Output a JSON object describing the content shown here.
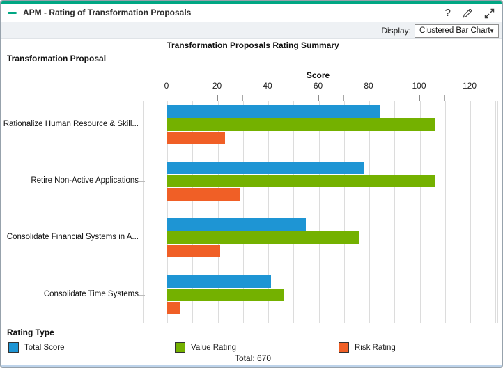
{
  "window": {
    "title": "APM - Rating of Transformation Proposals",
    "icons": {
      "minimize": "dash",
      "help": "?",
      "edit": "pencil",
      "expand": "diagonal-arrows"
    }
  },
  "toolbar": {
    "display_label": "Display:",
    "display_value": "Clustered Bar Chart",
    "caret": "▼"
  },
  "chart_data": {
    "type": "bar",
    "orientation": "horizontal",
    "title": "Transformation Proposals Rating Summary",
    "ylabel": "Transformation Proposal",
    "xlabel": "Score",
    "xlim": [
      0,
      120
    ],
    "xticks": [
      0,
      20,
      40,
      60,
      80,
      100,
      120
    ],
    "grid": true,
    "gridline_step": 10,
    "categories": [
      "Rationalize Human Resource & Skill...",
      "Retire Non-Active Applications",
      "Consolidate Financial Systems in A...",
      "Consolidate Time Systems"
    ],
    "series": [
      {
        "name": "Total Score",
        "color": "#1E95D4",
        "values": [
          84,
          78,
          55,
          41
        ]
      },
      {
        "name": "Value Rating",
        "color": "#74B100",
        "values": [
          106,
          106,
          76,
          46
        ]
      },
      {
        "name": "Risk Rating",
        "color": "#F05F26",
        "values": [
          23,
          29,
          21,
          5
        ]
      }
    ],
    "legend_title": "Rating Type",
    "legend_position": "bottom"
  },
  "footer": {
    "total_label": "Total: 670"
  },
  "colors": {
    "accent_teal": "#00A783",
    "toolbar_bg": "#EEF1F4",
    "gridline": "#DCDCDC"
  }
}
